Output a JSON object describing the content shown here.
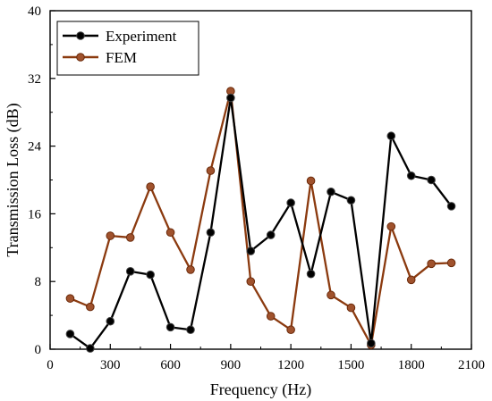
{
  "chart_data": {
    "type": "line",
    "xlabel": "Frequency (Hz)",
    "ylabel": "Transmission Loss (dB)",
    "xlim": [
      0,
      2100
    ],
    "ylim": [
      0,
      40
    ],
    "xticks": [
      0,
      300,
      600,
      900,
      1200,
      1500,
      1800,
      2100
    ],
    "yticks": [
      0,
      8,
      16,
      24,
      32,
      40
    ],
    "legend_position": "top-left",
    "series": [
      {
        "name": "Experiment",
        "color": "#000000",
        "marker_color": "#000000",
        "x": [
          100,
          200,
          300,
          400,
          500,
          600,
          700,
          800,
          900,
          1000,
          1100,
          1200,
          1300,
          1400,
          1500,
          1600,
          1700,
          1800,
          1900,
          2000
        ],
        "y": [
          1.8,
          0.1,
          3.3,
          9.2,
          8.8,
          2.6,
          2.3,
          13.8,
          29.7,
          11.6,
          13.5,
          17.3,
          8.9,
          18.6,
          17.6,
          0.7,
          25.2,
          20.5,
          20.0,
          16.9
        ]
      },
      {
        "name": "FEM",
        "color": "#8B3A0F",
        "marker_color": "#A0522D",
        "x": [
          100,
          200,
          300,
          400,
          500,
          600,
          700,
          800,
          900,
          1000,
          1100,
          1200,
          1300,
          1400,
          1500,
          1600,
          1700,
          1800,
          1900,
          2000
        ],
        "y": [
          6.0,
          5.0,
          13.4,
          13.2,
          19.2,
          13.8,
          9.4,
          21.1,
          30.5,
          8.0,
          3.9,
          2.3,
          19.9,
          6.4,
          4.9,
          0.5,
          14.5,
          8.2,
          10.1,
          10.2
        ]
      }
    ]
  }
}
